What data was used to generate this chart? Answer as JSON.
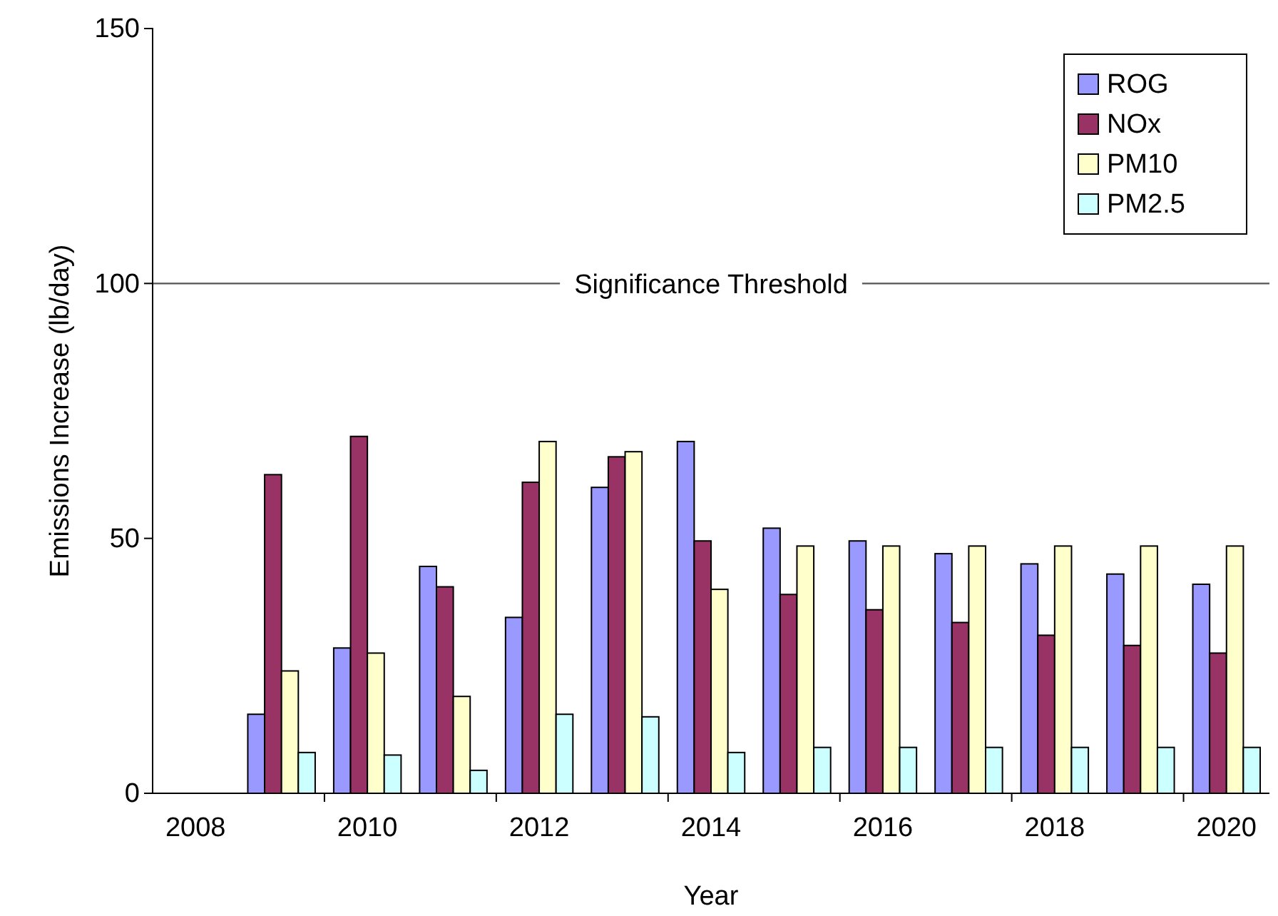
{
  "chart_data": {
    "type": "bar",
    "xlabel": "Year",
    "ylabel": "Emissions Increase (lb/day)",
    "categories": [
      "2008",
      null,
      "2010",
      null,
      "2012",
      null,
      "2014",
      null,
      "2016",
      null,
      "2018",
      null,
      "2020"
    ],
    "series": [
      {
        "name": "ROG",
        "color": "#9999ff",
        "values": [
          null,
          15.5,
          28.5,
          44.5,
          34.5,
          60,
          69,
          52,
          49.5,
          47,
          45,
          43,
          41
        ]
      },
      {
        "name": "NOx",
        "color": "#993366",
        "values": [
          null,
          62.5,
          70,
          40.5,
          61,
          66,
          49.5,
          39,
          36,
          33.5,
          31,
          29,
          27.5
        ]
      },
      {
        "name": "PM10",
        "color": "#ffffcc",
        "values": [
          null,
          24,
          27.5,
          19,
          69,
          67,
          40,
          48.5,
          48.5,
          48.5,
          48.5,
          48.5,
          48.5
        ]
      },
      {
        "name": "PM2.5",
        "color": "#ccffff",
        "values": [
          null,
          8,
          7.5,
          4.5,
          15.5,
          15,
          8,
          9,
          9,
          9,
          9,
          9,
          9
        ]
      }
    ],
    "ylim": [
      0,
      150
    ],
    "yticks": [
      0,
      50,
      100,
      150
    ],
    "grid": false,
    "legend": "top right",
    "ref_lines": [
      {
        "axis": "y",
        "value": 100,
        "label": "Significance Threshold"
      }
    ]
  }
}
